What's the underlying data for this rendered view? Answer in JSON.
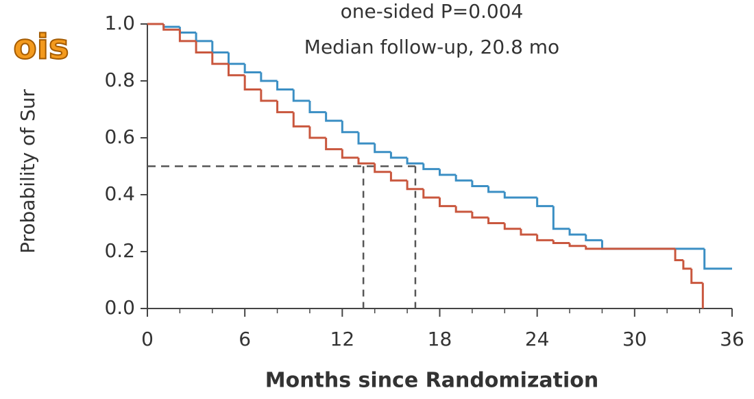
{
  "chart_data": {
    "type": "line",
    "step": true,
    "annotations": [
      "one-sided P=0.004",
      "Median follow-up, 20.8 mo"
    ],
    "logo": "ois",
    "x_label": "Months since Randomization",
    "y_label": "Probability of Sur",
    "xlim": [
      0,
      36
    ],
    "xticks": [
      0,
      6,
      12,
      18,
      24,
      30,
      36
    ],
    "xminor_ticks": [
      2,
      4,
      8,
      10,
      14,
      16,
      20,
      22,
      26,
      28,
      32,
      34
    ],
    "ylim": [
      0,
      1
    ],
    "yticks": [
      {
        "value": 0,
        "label": "0.0"
      },
      0.2,
      0.4,
      0.6,
      0.8,
      {
        "value": 1,
        "label": "1.0"
      }
    ],
    "median_level": 0.5,
    "medians": [
      13.3,
      16.5
    ],
    "series": [
      {
        "color": "#3b8fc4",
        "x": [
          0,
          1,
          2,
          3,
          4,
          5,
          6,
          7,
          8,
          9,
          10,
          11,
          12,
          13,
          14,
          15,
          16,
          17,
          18,
          19,
          20,
          21,
          22,
          24,
          25,
          26,
          27,
          28,
          34.3,
          36
        ],
        "values": [
          1.0,
          0.99,
          0.97,
          0.94,
          0.9,
          0.86,
          0.83,
          0.8,
          0.77,
          0.73,
          0.69,
          0.66,
          0.62,
          0.58,
          0.55,
          0.53,
          0.51,
          0.49,
          0.47,
          0.45,
          0.43,
          0.41,
          0.39,
          0.36,
          0.28,
          0.26,
          0.24,
          0.21,
          0.14,
          0.14
        ]
      },
      {
        "color": "#c9573e",
        "x": [
          0,
          1,
          2,
          3,
          4,
          5,
          6,
          7,
          8,
          9,
          10,
          11,
          12,
          13,
          14,
          15,
          16,
          17,
          18,
          19,
          20,
          21,
          22,
          23,
          24,
          25,
          26,
          27,
          32.5,
          33,
          33.5,
          34.2
        ],
        "values": [
          1.0,
          0.98,
          0.94,
          0.9,
          0.86,
          0.82,
          0.77,
          0.73,
          0.69,
          0.64,
          0.6,
          0.56,
          0.53,
          0.51,
          0.48,
          0.45,
          0.42,
          0.39,
          0.36,
          0.34,
          0.32,
          0.3,
          0.28,
          0.26,
          0.24,
          0.23,
          0.22,
          0.21,
          0.17,
          0.14,
          0.09,
          0.0
        ]
      }
    ]
  }
}
